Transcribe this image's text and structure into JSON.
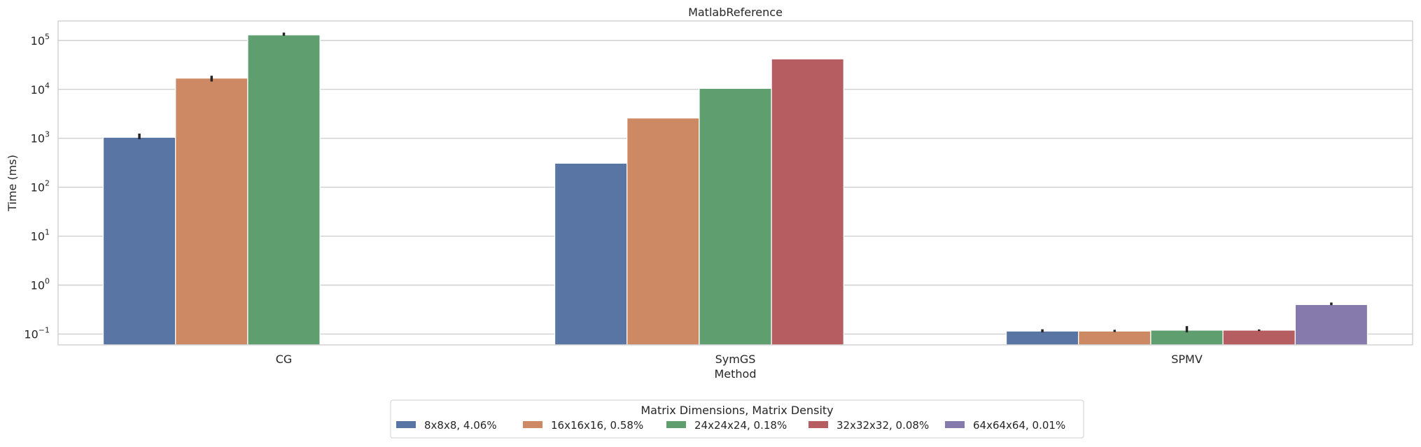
{
  "chart_data": {
    "type": "bar",
    "title": "MatlabReference",
    "xlabel": "Method",
    "ylabel": "Time (ms)",
    "yscale": "log",
    "ylim": [
      0.06,
      250000
    ],
    "yticks": [
      {
        "value": 0.1,
        "base": "10",
        "exp": "−1"
      },
      {
        "value": 1,
        "base": "10",
        "exp": "0"
      },
      {
        "value": 10,
        "base": "10",
        "exp": "1"
      },
      {
        "value": 100,
        "base": "10",
        "exp": "2"
      },
      {
        "value": 1000,
        "base": "10",
        "exp": "3"
      },
      {
        "value": 10000,
        "base": "10",
        "exp": "4"
      },
      {
        "value": 100000,
        "base": "10",
        "exp": "5"
      }
    ],
    "grid": true,
    "categories": [
      "CG",
      "SymGS",
      "SPMV"
    ],
    "legend": {
      "title": "Matrix Dimensions, Matrix Density",
      "placement": "bottom-center"
    },
    "series": [
      {
        "name": "8x8x8, 4.06%",
        "color": "#5975a4",
        "values": [
          1050,
          310,
          0.115
        ],
        "err_low": [
          960,
          null,
          0.108
        ],
        "err_high": [
          1250,
          null,
          0.125
        ]
      },
      {
        "name": "16x16x16, 0.58%",
        "color": "#cc8963",
        "values": [
          17000,
          2600,
          0.115
        ],
        "err_low": [
          14500,
          null,
          0.11
        ],
        "err_high": [
          19000,
          null,
          0.122
        ]
      },
      {
        "name": "24x24x24, 0.18%",
        "color": "#5f9e6e",
        "values": [
          130000,
          10500,
          0.12
        ],
        "err_low": [
          125000,
          null,
          0.108
        ],
        "err_high": [
          145000,
          null,
          0.145
        ]
      },
      {
        "name": "32x32x32, 0.08%",
        "color": "#b55d60",
        "values": [
          null,
          42000,
          0.12
        ],
        "err_low": [
          null,
          null,
          0.115
        ],
        "err_high": [
          null,
          null,
          0.124
        ]
      },
      {
        "name": "64x64x64, 0.01%",
        "color": "#857aab",
        "values": [
          null,
          null,
          0.4
        ],
        "err_low": [
          null,
          null,
          0.39
        ],
        "err_high": [
          null,
          null,
          0.44
        ]
      }
    ]
  }
}
